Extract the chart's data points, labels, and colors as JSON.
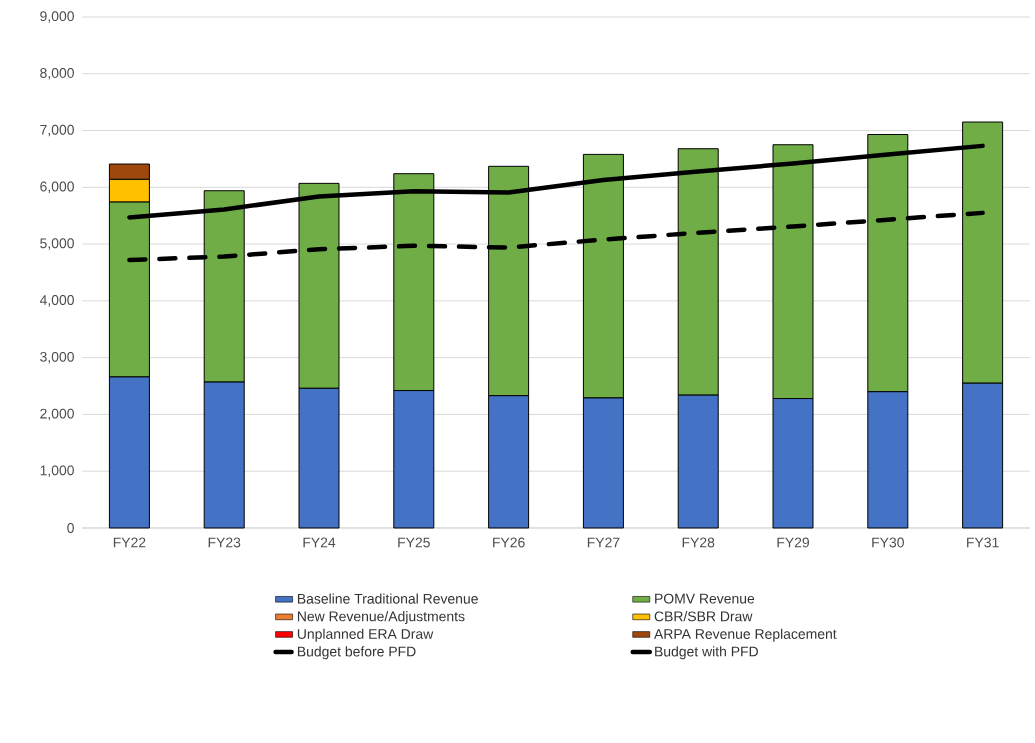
{
  "chart_data": {
    "type": "bar",
    "stacked": true,
    "categories": [
      "FY22",
      "FY23",
      "FY24",
      "FY25",
      "FY26",
      "FY27",
      "FY28",
      "FY29",
      "FY30",
      "FY31"
    ],
    "series": [
      {
        "name": "Baseline Traditional Revenue",
        "color": "#4472c4",
        "values": [
          2660,
          2570,
          2460,
          2420,
          2330,
          2290,
          2340,
          2280,
          2400,
          2550
        ]
      },
      {
        "name": "POMV Revenue",
        "color": "#70ad47",
        "values": [
          3080,
          3370,
          3610,
          3820,
          4040,
          4290,
          4340,
          4470,
          4530,
          4600
        ]
      },
      {
        "name": "New Revenue/Adjustments",
        "color": "#ed7d31",
        "values": [
          null,
          null,
          null,
          null,
          null,
          null,
          null,
          null,
          null,
          null
        ]
      },
      {
        "name": "CBR/SBR Draw",
        "color": "#ffc000",
        "values": [
          400,
          null,
          null,
          null,
          null,
          null,
          null,
          null,
          null,
          null
        ]
      },
      {
        "name": "Unplanned ERA Draw",
        "color": "#ff0000",
        "values": [
          null,
          null,
          null,
          null,
          null,
          null,
          null,
          null,
          null,
          null
        ]
      },
      {
        "name": "ARPA Revenue Replacement",
        "color": "#9e480e",
        "values": [
          270,
          null,
          null,
          null,
          null,
          null,
          null,
          null,
          null,
          null
        ]
      },
      {
        "name": "Budget before PFD",
        "type": "line",
        "line_style": "dashed",
        "color": "#000000",
        "values": [
          4720,
          4780,
          4910,
          4970,
          4940,
          5080,
          5200,
          5310,
          5430,
          5550
        ]
      },
      {
        "name": "Budget with PFD",
        "type": "line",
        "line_style": "solid",
        "color": "#000000",
        "values": [
          5470,
          5610,
          5840,
          5930,
          5910,
          6130,
          6280,
          6420,
          6580,
          6730
        ]
      }
    ],
    "ylim": [
      0,
      9000
    ],
    "yticks": [
      0,
      {
        "value": 1000,
        "label": "1,000"
      },
      {
        "value": 2000,
        "label": "2,000"
      },
      {
        "value": 3000,
        "label": "3,000"
      },
      {
        "value": 4000,
        "label": "4,000"
      },
      {
        "value": 5000,
        "label": "5,000"
      },
      {
        "value": 6000,
        "label": "6,000"
      },
      {
        "value": 7000,
        "label": "7,000"
      },
      {
        "value": 8000,
        "label": "8,000"
      },
      {
        "value": 9000,
        "label": "9,000"
      }
    ],
    "grid": "y",
    "legend": "bottom"
  }
}
